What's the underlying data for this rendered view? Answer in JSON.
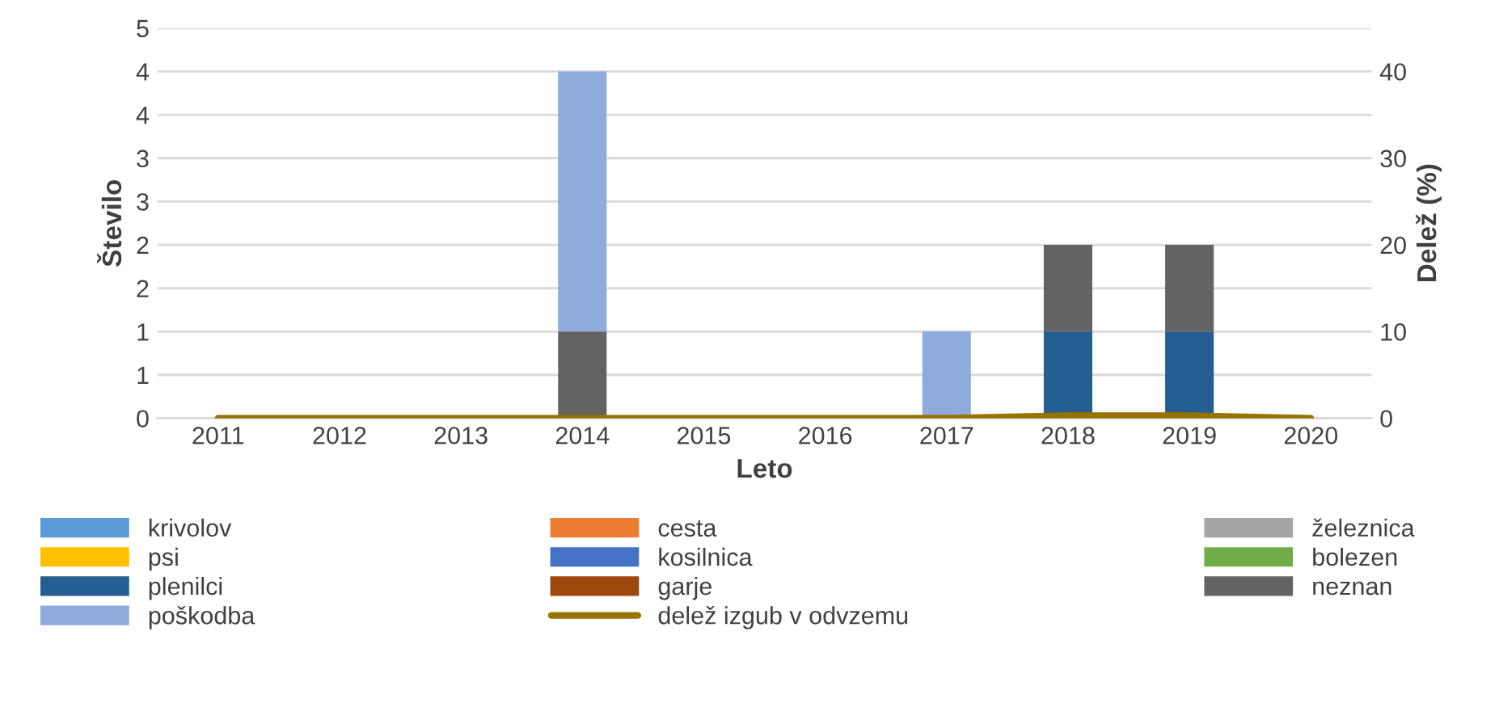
{
  "chart_data": {
    "type": "bar",
    "stacked": true,
    "xlabel": "Leto",
    "ylabel": "Število",
    "y2label": "Delež (%)",
    "categories": [
      "2011",
      "2012",
      "2013",
      "2014",
      "2015",
      "2016",
      "2017",
      "2018",
      "2019",
      "2020"
    ],
    "series": [
      {
        "name": "krivolov",
        "color": "#5b9bd5",
        "values": [
          null,
          null,
          null,
          null,
          null,
          null,
          null,
          null,
          null,
          null
        ]
      },
      {
        "name": "cesta",
        "color": "#ed7d31",
        "values": [
          null,
          null,
          null,
          null,
          null,
          null,
          null,
          null,
          null,
          null
        ]
      },
      {
        "name": "železnica",
        "color": "#a5a5a5",
        "values": [
          null,
          null,
          null,
          null,
          null,
          null,
          null,
          null,
          null,
          null
        ]
      },
      {
        "name": "psi",
        "color": "#ffc000",
        "values": [
          null,
          null,
          null,
          null,
          null,
          null,
          null,
          null,
          null,
          null
        ]
      },
      {
        "name": "kosilnica",
        "color": "#4472c4",
        "values": [
          null,
          null,
          null,
          null,
          null,
          null,
          null,
          null,
          null,
          null
        ]
      },
      {
        "name": "bolezen",
        "color": "#70ad47",
        "values": [
          null,
          null,
          null,
          null,
          null,
          null,
          null,
          null,
          null,
          null
        ]
      },
      {
        "name": "plenilci",
        "color": "#255e91",
        "values": [
          null,
          null,
          null,
          null,
          null,
          null,
          null,
          1,
          1,
          null
        ]
      },
      {
        "name": "garje",
        "color": "#9e480e",
        "values": [
          null,
          null,
          null,
          null,
          null,
          null,
          null,
          null,
          null,
          null
        ]
      },
      {
        "name": "neznan",
        "color": "#636363",
        "values": [
          null,
          null,
          null,
          1,
          null,
          null,
          null,
          1,
          1,
          null
        ]
      },
      {
        "name": "poškodba",
        "color": "#8faadc",
        "values": [
          null,
          null,
          null,
          3,
          null,
          null,
          1,
          null,
          null,
          null
        ]
      },
      {
        "name": "delež izgub v odvzemu",
        "color": "#997300",
        "type": "line",
        "axis": "y2",
        "values": [
          0,
          0,
          0,
          0,
          0,
          0,
          0,
          0.3,
          0.3,
          0
        ]
      }
    ],
    "ylim": [
      0,
      4.5
    ],
    "yticks": [
      0,
      {
        "value": 0.5,
        "label": "1"
      },
      1,
      {
        "value": 1.5,
        "label": "2"
      },
      2,
      {
        "value": 2.5,
        "label": "3"
      },
      {
        "value": 3,
        "label": "3"
      },
      {
        "value": 3.5,
        "label": "4"
      },
      4,
      {
        "value": 4.5,
        "label": "5"
      }
    ],
    "y2lim": [
      0,
      45
    ],
    "y2ticks": [
      0,
      10,
      20,
      30,
      40
    ],
    "grid": "y",
    "legend": "bottom"
  }
}
